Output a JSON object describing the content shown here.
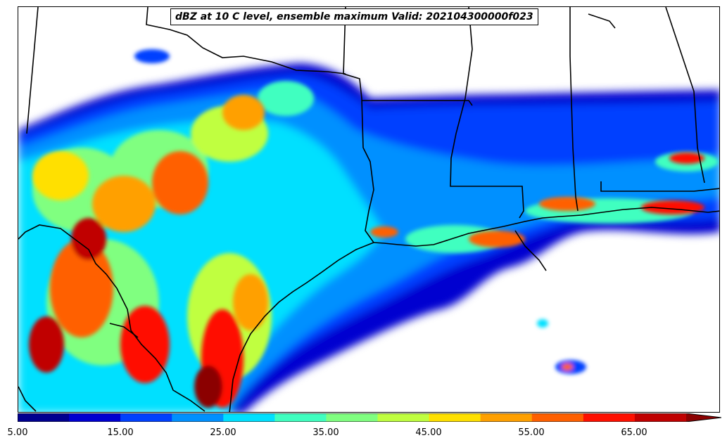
{
  "title": "dBZ at 10 C level, ensemble maximum Valid: 202104300000f023",
  "colorbar": {
    "min": 5,
    "max": 70,
    "step": 5,
    "extend": "max",
    "tick_labels": [
      "5.00",
      "15.00",
      "25.00",
      "35.00",
      "45.00",
      "55.00",
      "65.00"
    ],
    "colors": [
      "#00008f",
      "#0000d0",
      "#0040ff",
      "#0090ff",
      "#00e0ff",
      "#40ffc0",
      "#80ff80",
      "#c0ff40",
      "#ffe000",
      "#ffa000",
      "#ff6000",
      "#ff1000",
      "#c00000",
      "#8b0000"
    ]
  },
  "map": {
    "region": "Gulf Coast: Texas, Louisiana, Mississippi, Alabama, northern Mexico",
    "field": "reflectivity (dBZ)",
    "background": "#ffffff"
  }
}
